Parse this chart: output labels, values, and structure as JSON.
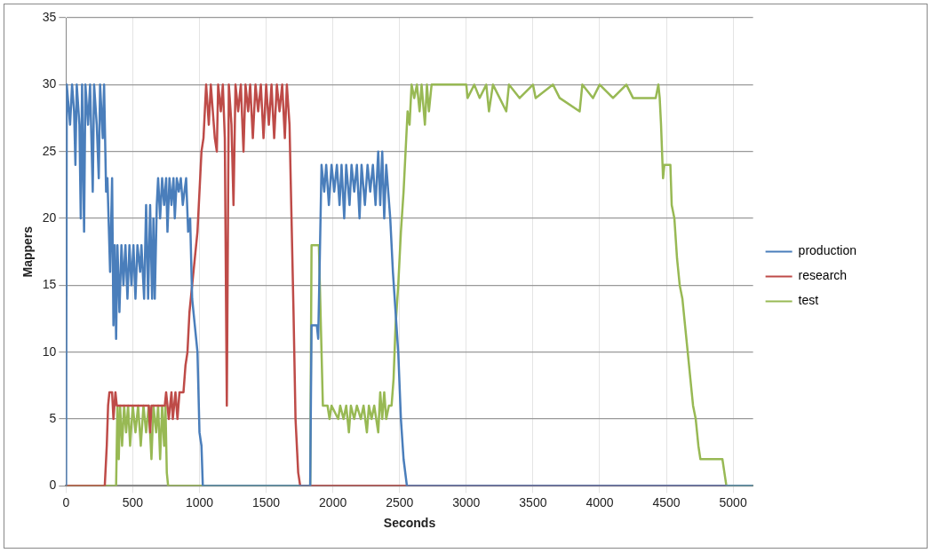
{
  "chart_data": {
    "type": "line",
    "xlabel": "Seconds",
    "ylabel": "Mappers",
    "xlim": [
      0,
      5150
    ],
    "xticks": [
      0,
      500,
      1000,
      1500,
      2000,
      2500,
      3000,
      3500,
      4000,
      4500,
      5000
    ],
    "ylim": [
      0,
      35
    ],
    "yticks": [
      0,
      5,
      10,
      15,
      20,
      25,
      30,
      35
    ],
    "grid": true,
    "legend": "right",
    "marker": "none",
    "line_style": "solid",
    "series": [
      {
        "name": "production",
        "color": "#4a7ebb",
        "x": [
          0,
          5,
          30,
          45,
          60,
          70,
          80,
          100,
          110,
          120,
          135,
          145,
          165,
          180,
          200,
          210,
          230,
          245,
          255,
          275,
          285,
          300,
          310,
          330,
          345,
          355,
          365,
          375,
          385,
          400,
          415,
          430,
          445,
          460,
          475,
          490,
          505,
          520,
          535,
          555,
          565,
          585,
          600,
          615,
          630,
          645,
          655,
          665,
          680,
          690,
          705,
          720,
          735,
          750,
          760,
          775,
          790,
          805,
          815,
          830,
          845,
          860,
          875,
          900,
          915,
          930,
          945,
          965,
          985,
          1000,
          1015,
          1025,
          1830,
          1840,
          1880,
          1890,
          1900,
          1915,
          1935,
          1950,
          1970,
          1990,
          2010,
          2030,
          2050,
          2065,
          2085,
          2100,
          2125,
          2140,
          2160,
          2180,
          2200,
          2215,
          2240,
          2260,
          2280,
          2300,
          2320,
          2340,
          2355,
          2370,
          2385,
          2400,
          2415,
          2430,
          2450,
          2470,
          2490,
          2510,
          2530,
          2555,
          5150
        ],
        "values": [
          0,
          30,
          27,
          30,
          28,
          24,
          30,
          27,
          20,
          30,
          19,
          30,
          27,
          30,
          22,
          30,
          27,
          23,
          30,
          26,
          30,
          22,
          23,
          16,
          23,
          12,
          18,
          11,
          18,
          13,
          18,
          15,
          18,
          14,
          18,
          15,
          18,
          14,
          18,
          16,
          18,
          14,
          21,
          14,
          21,
          14,
          20,
          14,
          21,
          23,
          20,
          23,
          21,
          23,
          19,
          23,
          21,
          23,
          20,
          23,
          22,
          23,
          21,
          23,
          19,
          20,
          14,
          12,
          10,
          4,
          3,
          0,
          0,
          12,
          12,
          11,
          16,
          24,
          22,
          24,
          21,
          24,
          22,
          24,
          21,
          24,
          20,
          24,
          21,
          24,
          22,
          24,
          20,
          24,
          21,
          24,
          22,
          24,
          21,
          25,
          21,
          25,
          20,
          24,
          22,
          20,
          16,
          13,
          10,
          5,
          2,
          0,
          0
        ]
      },
      {
        "name": "research",
        "color": "#be4b48",
        "x": [
          0,
          290,
          305,
          315,
          325,
          345,
          355,
          370,
          380,
          620,
          630,
          640,
          740,
          750,
          770,
          790,
          800,
          820,
          835,
          850,
          880,
          895,
          910,
          925,
          945,
          965,
          985,
          1000,
          1015,
          1030,
          1040,
          1050,
          1070,
          1085,
          1100,
          1115,
          1130,
          1140,
          1160,
          1175,
          1190,
          1205,
          1220,
          1240,
          1255,
          1270,
          1290,
          1310,
          1330,
          1345,
          1365,
          1380,
          1400,
          1420,
          1440,
          1460,
          1480,
          1500,
          1520,
          1540,
          1560,
          1580,
          1600,
          1620,
          1640,
          1655,
          1675,
          1690,
          1705,
          1720,
          1740,
          1755,
          4950
        ],
        "values": [
          0,
          0,
          3,
          6,
          7,
          7,
          5,
          7,
          6,
          6,
          4,
          6,
          6,
          7,
          5,
          7,
          5,
          7,
          5,
          7,
          7,
          9,
          10,
          13,
          15,
          17,
          19,
          22,
          25,
          26,
          28,
          30,
          27,
          30,
          28,
          26,
          25,
          30,
          28,
          30,
          26,
          6,
          30,
          27,
          21,
          30,
          28,
          30,
          25,
          30,
          28,
          30,
          26,
          30,
          28,
          30,
          26,
          30,
          27,
          30,
          26,
          30,
          28,
          30,
          26,
          30,
          27,
          20,
          13,
          5,
          1,
          0,
          0
        ]
      },
      {
        "name": "test",
        "color": "#98b954",
        "x": [
          0,
          375,
          385,
          395,
          405,
          420,
          435,
          450,
          465,
          480,
          500,
          520,
          540,
          560,
          580,
          600,
          620,
          640,
          655,
          675,
          690,
          705,
          720,
          735,
          745,
          755,
          765,
          1830,
          1840,
          1895,
          1905,
          1925,
          1960,
          1975,
          1990,
          2040,
          2055,
          2080,
          2100,
          2120,
          2135,
          2160,
          2180,
          2210,
          2230,
          2255,
          2270,
          2290,
          2310,
          2340,
          2355,
          2370,
          2385,
          2400,
          2420,
          2440,
          2455,
          2470,
          2490,
          2510,
          2530,
          2545,
          2560,
          2575,
          2590,
          2610,
          2630,
          2650,
          2665,
          2690,
          2705,
          2720,
          2740,
          3000,
          3010,
          3060,
          3100,
          3150,
          3170,
          3200,
          3250,
          3300,
          3320,
          3400,
          3500,
          3520,
          3650,
          3700,
          3850,
          3870,
          3950,
          4000,
          4100,
          4200,
          4250,
          4420,
          4440,
          4450,
          4460,
          4475,
          4485,
          4530,
          4540,
          4560,
          4580,
          4600,
          4620,
          4640,
          4660,
          4680,
          4700,
          4720,
          4740,
          4755,
          4920,
          4935,
          4950,
          5150
        ],
        "values": [
          0,
          0,
          6,
          2,
          6,
          3,
          6,
          4,
          6,
          3,
          6,
          4,
          6,
          3,
          6,
          4,
          6,
          2,
          6,
          4,
          6,
          2,
          6,
          3,
          6,
          1,
          0,
          0,
          18,
          18,
          14,
          6,
          6,
          5,
          6,
          5,
          6,
          5,
          6,
          4,
          6,
          5,
          6,
          5,
          6,
          4,
          6,
          5,
          6,
          4,
          7,
          5,
          7,
          5,
          6,
          6,
          8,
          12,
          15,
          19,
          22,
          25,
          28,
          27,
          30,
          29,
          30,
          28,
          30,
          27,
          30,
          28,
          30,
          30,
          29,
          30,
          29,
          30,
          28,
          30,
          29,
          28,
          30,
          29,
          30,
          29,
          30,
          29,
          28,
          30,
          29,
          30,
          29,
          30,
          29,
          29,
          30,
          29,
          27,
          23,
          24,
          24,
          21,
          20,
          17,
          15,
          14,
          12,
          10,
          8,
          6,
          5,
          3,
          2,
          2,
          1,
          0,
          0
        ]
      }
    ]
  }
}
